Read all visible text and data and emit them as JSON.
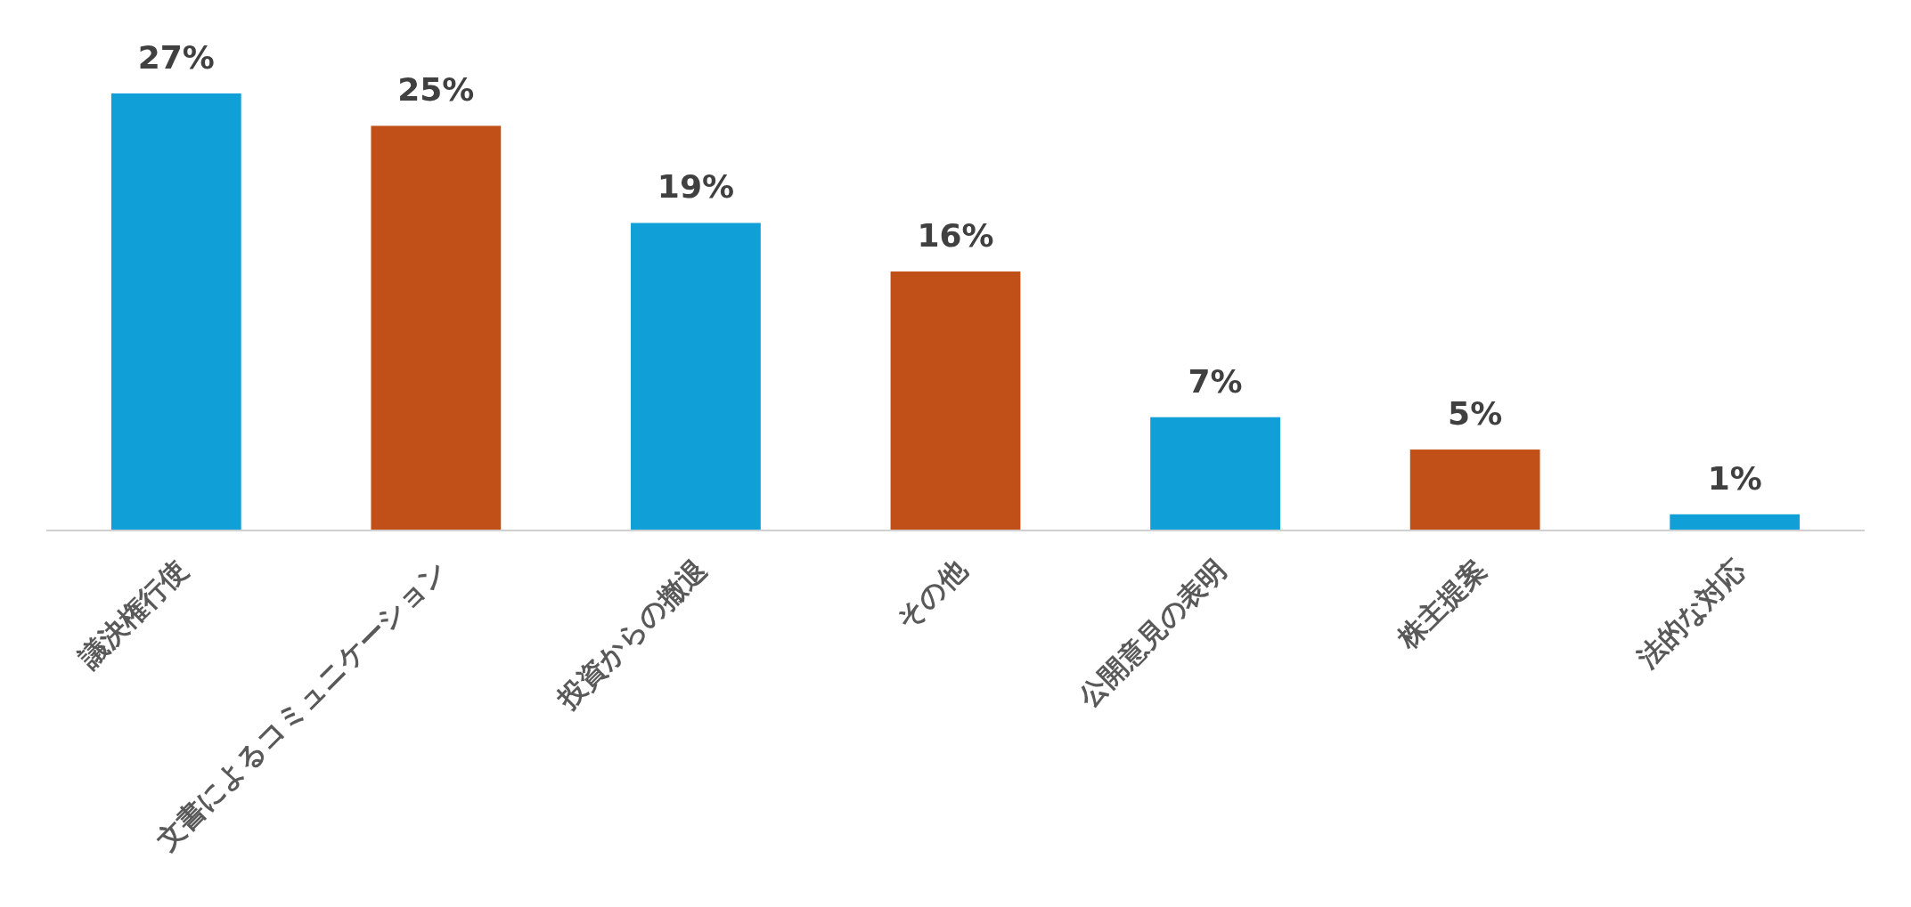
{
  "chart_data": {
    "type": "bar",
    "categories": [
      "議決権行使",
      "文書によるコミュニケーション",
      "投資からの撤退",
      "その他",
      "公開意見の表明",
      "株主提案",
      "法的な対応"
    ],
    "values": [
      27,
      25,
      19,
      16,
      7,
      5,
      1
    ],
    "colors": [
      "#109fd7",
      "#c05017",
      "#109fd7",
      "#c05017",
      "#109fd7",
      "#c05017",
      "#109fd7"
    ],
    "value_labels": [
      "27%",
      "25%",
      "19%",
      "16%",
      "7%",
      "5%",
      "1%"
    ]
  }
}
